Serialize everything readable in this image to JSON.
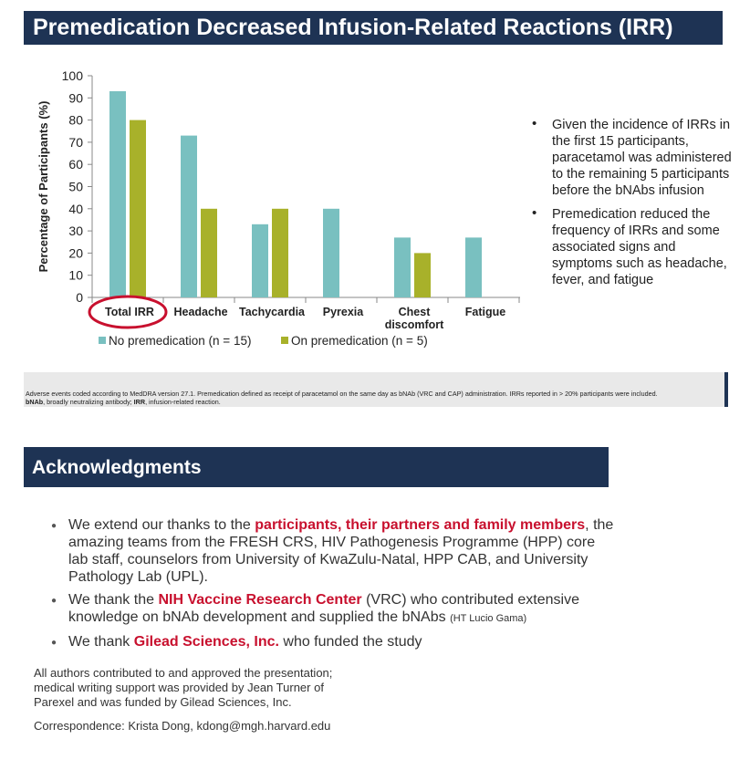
{
  "title": "Premedication Decreased Infusion-Related Reactions (IRR)",
  "chart_data": {
    "type": "bar",
    "categories": [
      "Total IRR",
      "Headache",
      "Tachycardia",
      "Pyrexia",
      "Chest discomfort",
      "Fatigue"
    ],
    "category_lines": [
      [
        "Total IRR"
      ],
      [
        "Headache"
      ],
      [
        "Tachycardia"
      ],
      [
        "Pyrexia"
      ],
      [
        "Chest",
        "discomfort"
      ],
      [
        "Fatigue"
      ]
    ],
    "series": [
      {
        "name": "No premedication (n = 15)",
        "values": [
          93,
          73,
          33,
          40,
          27,
          27
        ],
        "color": "#79c0c0"
      },
      {
        "name": "On premedication (n = 5)",
        "values": [
          80,
          40,
          40,
          0,
          20,
          0
        ],
        "color": "#a8b12a"
      }
    ],
    "ylabel": "Percentage of Participants (%)",
    "xlabel": "",
    "ylim": [
      0,
      100
    ],
    "yticks": [
      0,
      10,
      20,
      30,
      40,
      50,
      60,
      70,
      80,
      90,
      100
    ],
    "grid": false,
    "legend": "bottom",
    "annotation": "red ellipse around Total IRR",
    "highlight_color": "#c8102e"
  },
  "bullets": [
    "Given the incidence of IRRs in the first 15 participants, paracetamol was administered to the remaining 5 participants before the bNAbs infusion",
    "Premedication reduced the frequency of IRRs and some associated signs and symptoms such as headache, fever, and fatigue"
  ],
  "footnote": {
    "line1": "Adverse events coded according to MedDRA version 27.1. Premedication defined as receipt of paracetamol on the same day as bNAb (VRC and CAP) administration. IRRs reported in > 20% participants were included.",
    "abbr1_term": "bNAb",
    "abbr1_def": ", broadly neutralizing antibody; ",
    "abbr2_term": "IRR",
    "abbr2_def": ", infusion-related reaction."
  },
  "acknowledgments": {
    "heading": "Acknowledgments",
    "item1_pre": "We extend our thanks to the ",
    "item1_hl": "participants, their partners and family members",
    "item1_post": ", the amazing teams from the FRESH CRS, HIV Pathogenesis Programme (HPP) core lab staff, counselors from University of KwaZulu-Natal, HPP CAB, and University Pathology Lab (UPL).",
    "item2_pre": "We thank the ",
    "item2_hl": "NIH Vaccine Research Center",
    "item2_post": " (VRC) who contributed extensive knowledge on bNAb development and supplied the bNAbs ",
    "item2_small": "(HT Lucio Gama)",
    "item3_pre": "We thank ",
    "item3_hl": "Gilead Sciences, Inc.",
    "item3_post": " who funded the study",
    "authors_line1": "All authors contributed to and approved the presentation;",
    "authors_line2": "medical writing support was provided by Jean Turner of",
    "authors_line3": "Parexel and was funded by Gilead Sciences, Inc.",
    "correspondence": "Correspondence: Krista Dong, kdong@mgh.harvard.edu"
  }
}
